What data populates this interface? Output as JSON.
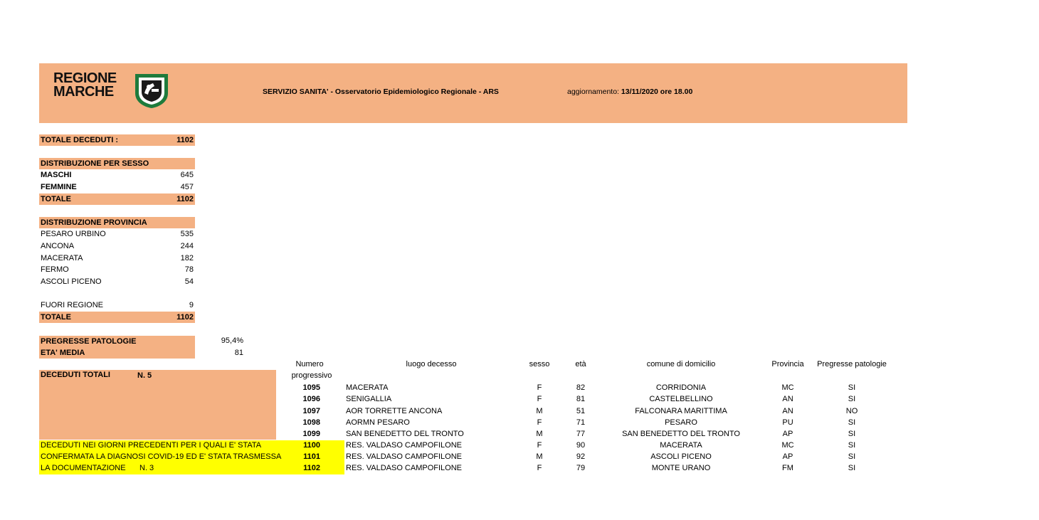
{
  "header": {
    "logo_line1": "REGIONE",
    "logo_line2": "MARCHE",
    "service": "SERVIZIO SANITA' - Osservatorio Epidemiologico Regionale - ARS",
    "update_label": "aggiornamento: ",
    "update_value": "13/11/2020  ore 18.00"
  },
  "totale_deceduti": {
    "label": "TOTALE DECEDUTI :",
    "value": "1102"
  },
  "sesso": {
    "title": "DISTRIBUZIONE PER SESSO",
    "rows": [
      {
        "label": "MASCHI",
        "value": "645"
      },
      {
        "label": "FEMMINE",
        "value": "457"
      }
    ],
    "total_label": "TOTALE",
    "total_value": "1102"
  },
  "provincia": {
    "title": "DISTRIBUZIONE  PROVINCIA",
    "rows": [
      {
        "label": "PESARO URBINO",
        "value": "535"
      },
      {
        "label": "ANCONA",
        "value": "244"
      },
      {
        "label": "MACERATA",
        "value": "182"
      },
      {
        "label": "FERMO",
        "value": "78"
      },
      {
        "label": "ASCOLI PICENO",
        "value": "54"
      }
    ],
    "fuori_label": "FUORI REGIONE",
    "fuori_value": "9",
    "total_label": "TOTALE",
    "total_value": "1102"
  },
  "pregresse": {
    "label": "PREGRESSE PATOLOGIE",
    "value": "95,4%"
  },
  "eta_media": {
    "label": "ETA' MEDIA",
    "value": "81"
  },
  "deceduti_totali": {
    "label": "DECEDUTI TOTALI",
    "count": "N. 5"
  },
  "precedenti": {
    "line1": "DECEDUTI NEI GIORNI PRECEDENTI PER I QUALI E' STATA",
    "line2": "CONFERMATA LA DIAGNOSI COVID-19 ED E' STATA TRASMESSA",
    "line3": "LA DOCUMENTAZIONE",
    "count": "N. 3"
  },
  "table": {
    "headers": {
      "numero": "Numero",
      "progressivo": "progressivo",
      "luogo": "luogo decesso",
      "sesso": "sesso",
      "eta": "età",
      "comune": "comune di domicilio",
      "provincia": "Provincia",
      "patologie": "Pregresse patologie"
    },
    "rows": [
      {
        "num": "1095",
        "luogo": "MACERATA",
        "sesso": "F",
        "eta": "82",
        "comune": "CORRIDONIA",
        "prov": "MC",
        "pat": "SI"
      },
      {
        "num": "1096",
        "luogo": "SENIGALLIA",
        "sesso": "F",
        "eta": "81",
        "comune": "CASTELBELLINO",
        "prov": "AN",
        "pat": "SI"
      },
      {
        "num": "1097",
        "luogo": "AOR TORRETTE ANCONA",
        "sesso": "M",
        "eta": "51",
        "comune": "FALCONARA MARITTIMA",
        "prov": "AN",
        "pat": "NO"
      },
      {
        "num": "1098",
        "luogo": "AORMN PESARO",
        "sesso": "F",
        "eta": "71",
        "comune": "PESARO",
        "prov": "PU",
        "pat": "SI"
      },
      {
        "num": "1099",
        "luogo": "SAN BENEDETTO DEL TRONTO",
        "sesso": "M",
        "eta": "77",
        "comune": "SAN BENEDETTO DEL TRONTO",
        "prov": "AP",
        "pat": "SI"
      },
      {
        "num": "1100",
        "luogo": "RES. VALDASO CAMPOFILONE",
        "sesso": "F",
        "eta": "90",
        "comune": "MACERATA",
        "prov": "MC",
        "pat": "SI"
      },
      {
        "num": "1101",
        "luogo": "RES. VALDASO CAMPOFILONE",
        "sesso": "M",
        "eta": "92",
        "comune": "ASCOLI PICENO",
        "prov": "AP",
        "pat": "SI"
      },
      {
        "num": "1102",
        "luogo": "RES. VALDASO CAMPOFILONE",
        "sesso": "F",
        "eta": "79",
        "comune": "MONTE URANO",
        "prov": "FM",
        "pat": "SI"
      }
    ]
  },
  "colors": {
    "peach": "#f4b183",
    "yellow": "#ffff00",
    "logo_green": "#1e7b3c"
  }
}
